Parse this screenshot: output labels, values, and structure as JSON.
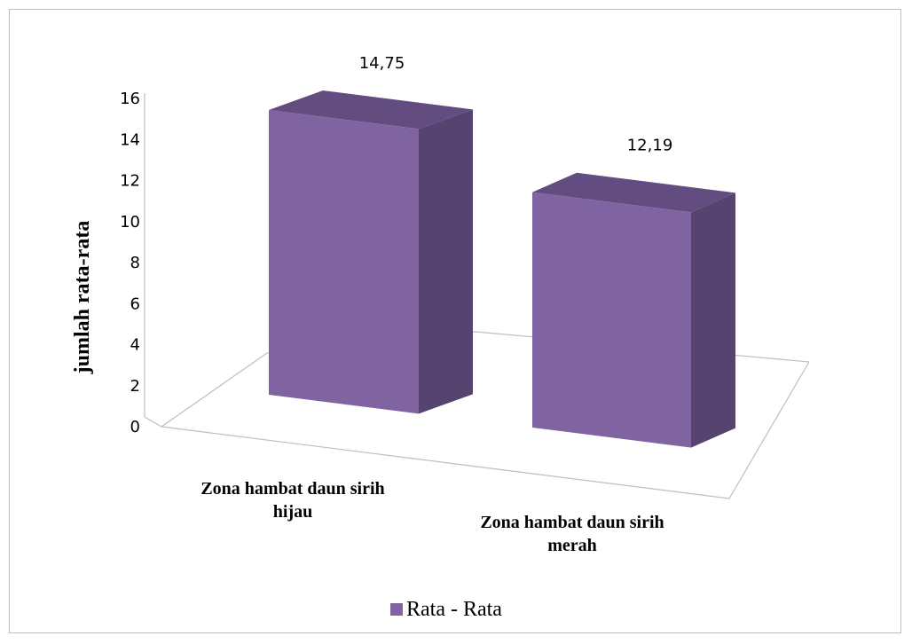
{
  "chart_data": {
    "type": "bar",
    "style": "3d-column",
    "categories": [
      [
        "Zona hambat daun sirih",
        "hijau"
      ],
      [
        "Zona hambat daun sirih",
        "merah"
      ]
    ],
    "series": [
      {
        "name": "Rata - Rata",
        "values": [
          14.75,
          12.19
        ],
        "color": "#8064a2"
      }
    ],
    "data_labels": [
      "14,75",
      "12,19"
    ],
    "ylabel": "jumlah rata-rata",
    "xlabel": "",
    "title": "",
    "ylim": [
      0,
      16
    ],
    "yticks": [
      0,
      2,
      4,
      6,
      8,
      10,
      12,
      14,
      16
    ],
    "grid": false,
    "legend_position": "bottom"
  }
}
